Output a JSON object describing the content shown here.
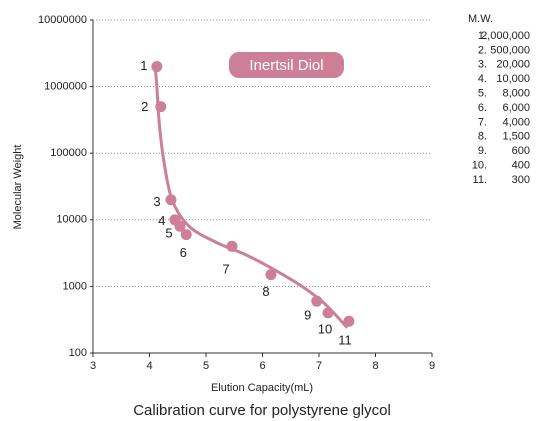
{
  "chart_data": {
    "type": "scatter",
    "annotation": "Inertsil Diol",
    "caption": "Calibration curve for polystyrene glycol",
    "x_label": "Elution Capacity(mL)",
    "y_label": "Molecular Weight",
    "xlim": [
      3,
      9
    ],
    "xticks": [
      3,
      4,
      5,
      6,
      7,
      8,
      9
    ],
    "ylim": [
      100,
      10000000
    ],
    "yticks": [
      100,
      1000,
      10000,
      100000,
      1000000,
      10000000
    ],
    "ylog": true,
    "grid": true,
    "color": "#cc7f96",
    "series": [
      {
        "x": [
          4.13,
          4.2,
          4.38,
          4.45,
          4.54,
          4.65,
          5.46,
          6.15,
          6.96,
          7.16,
          7.53
        ],
        "values": [
          2000000,
          500000,
          20000,
          10000,
          8000,
          6000,
          4000,
          1500,
          600,
          400,
          300
        ],
        "value_labels": [
          "2,000,000",
          "500,000",
          "20,000",
          "10,000",
          "8,000",
          "6,000",
          "4,000",
          "1,500",
          "600",
          "400",
          "300"
        ],
        "point_labels": [
          "1",
          "2",
          "3",
          "4",
          "5",
          "6",
          "7",
          "8",
          "9",
          "10",
          "11"
        ],
        "table_numbers": [
          "1.",
          "2.",
          "3.",
          "4.",
          "5.",
          "6.",
          "7.",
          "8.",
          "9.",
          "10.",
          "11."
        ]
      }
    ],
    "fit": {
      "x": [
        4.1,
        4.13,
        4.17,
        4.25,
        4.4,
        4.7,
        5.2,
        5.7,
        6.2,
        6.7,
        7.1,
        7.5
      ],
      "values": [
        2000000,
        1000000,
        300000,
        80000,
        20000,
        8000,
        4500,
        3000,
        1800,
        1000,
        550,
        240
      ]
    },
    "table_title": "M.W."
  }
}
